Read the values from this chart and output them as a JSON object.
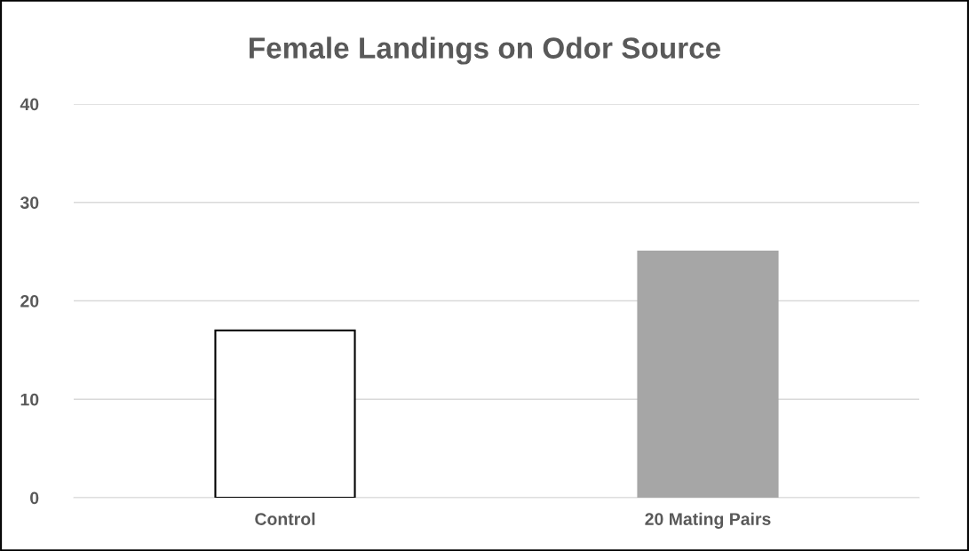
{
  "chart_data": {
    "type": "bar",
    "title": "Female Landings on Odor Source",
    "categories": [
      "Control",
      "20 Mating Pairs"
    ],
    "values": [
      17,
      25
    ],
    "colors": [
      "#ffffff",
      "#a6a6a6"
    ],
    "ylim": [
      0,
      40
    ],
    "yticks": [
      0,
      10,
      20,
      30,
      40
    ],
    "grid": "y"
  }
}
